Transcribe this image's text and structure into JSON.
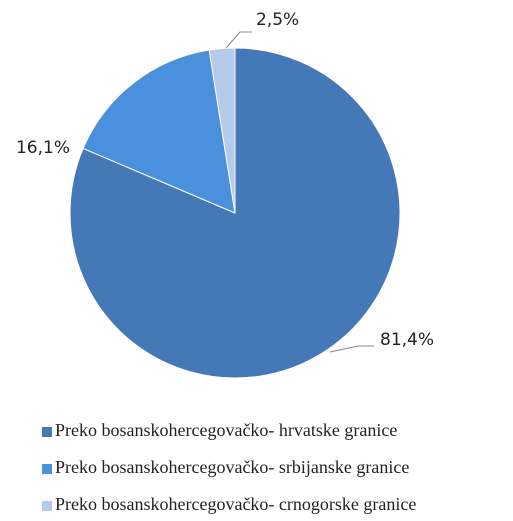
{
  "chart_data": {
    "type": "pie",
    "categories": [
      "Preko bosanskohercegovačko- hrvatske granice",
      "Preko bosanskohercegovačko- srbijanske granice",
      "Preko bosanskohercegovačko- crnogorske granice"
    ],
    "values": [
      81.4,
      16.1,
      2.5
    ],
    "value_labels": [
      "81,4%",
      "16,1%",
      "2,5%"
    ],
    "colors": [
      "#4478b7",
      "#4a90dc",
      "#b6cbe9"
    ],
    "legend": "bottom"
  }
}
